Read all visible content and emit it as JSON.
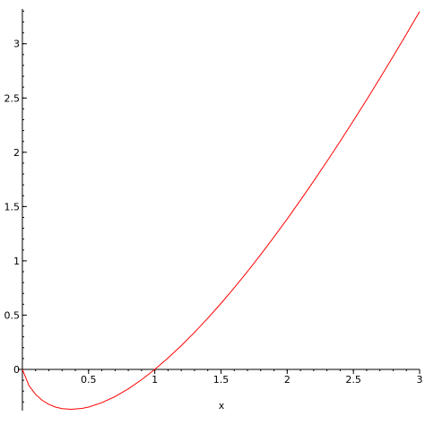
{
  "chart_data": {
    "type": "line",
    "title": "",
    "xlabel": "x",
    "ylabel": "",
    "xlim": [
      -0.02,
      3.0
    ],
    "ylim": [
      -0.38,
      3.32
    ],
    "grid": false,
    "x_ticks": [
      0.5,
      1,
      1.5,
      2,
      2.5,
      3
    ],
    "x_tick_labels": [
      "0.5",
      "1",
      "1.5",
      "2",
      "2.5",
      "3"
    ],
    "y_ticks": [
      0,
      0.5,
      1,
      1.5,
      2,
      2.5,
      3
    ],
    "y_tick_labels": [
      "0",
      "0.5",
      "1",
      "1.5",
      "2",
      "2.5",
      "3"
    ],
    "line_color": "#ff0000",
    "axis_color": "#000000",
    "series": [
      {
        "x": [
          0.0,
          0.05,
          0.1,
          0.15,
          0.2,
          0.25,
          0.3,
          0.368,
          0.45,
          0.5,
          0.6,
          0.7,
          0.8,
          0.9,
          1.0,
          1.1,
          1.2,
          1.3,
          1.4,
          1.5,
          1.6,
          1.7,
          1.8,
          1.9,
          2.0,
          2.1,
          2.2,
          2.3,
          2.4,
          2.5,
          2.6,
          2.7,
          2.8,
          2.9,
          3.0
        ],
        "y": [
          0.0,
          -0.15,
          -0.23,
          -0.285,
          -0.322,
          -0.347,
          -0.361,
          -0.368,
          -0.359,
          -0.347,
          -0.306,
          -0.25,
          -0.179,
          -0.095,
          0.0,
          0.105,
          0.219,
          0.341,
          0.471,
          0.608,
          0.752,
          0.902,
          1.058,
          1.22,
          1.386,
          1.558,
          1.735,
          1.916,
          2.101,
          2.291,
          2.484,
          2.682,
          2.883,
          3.088,
          3.296
        ]
      }
    ]
  }
}
